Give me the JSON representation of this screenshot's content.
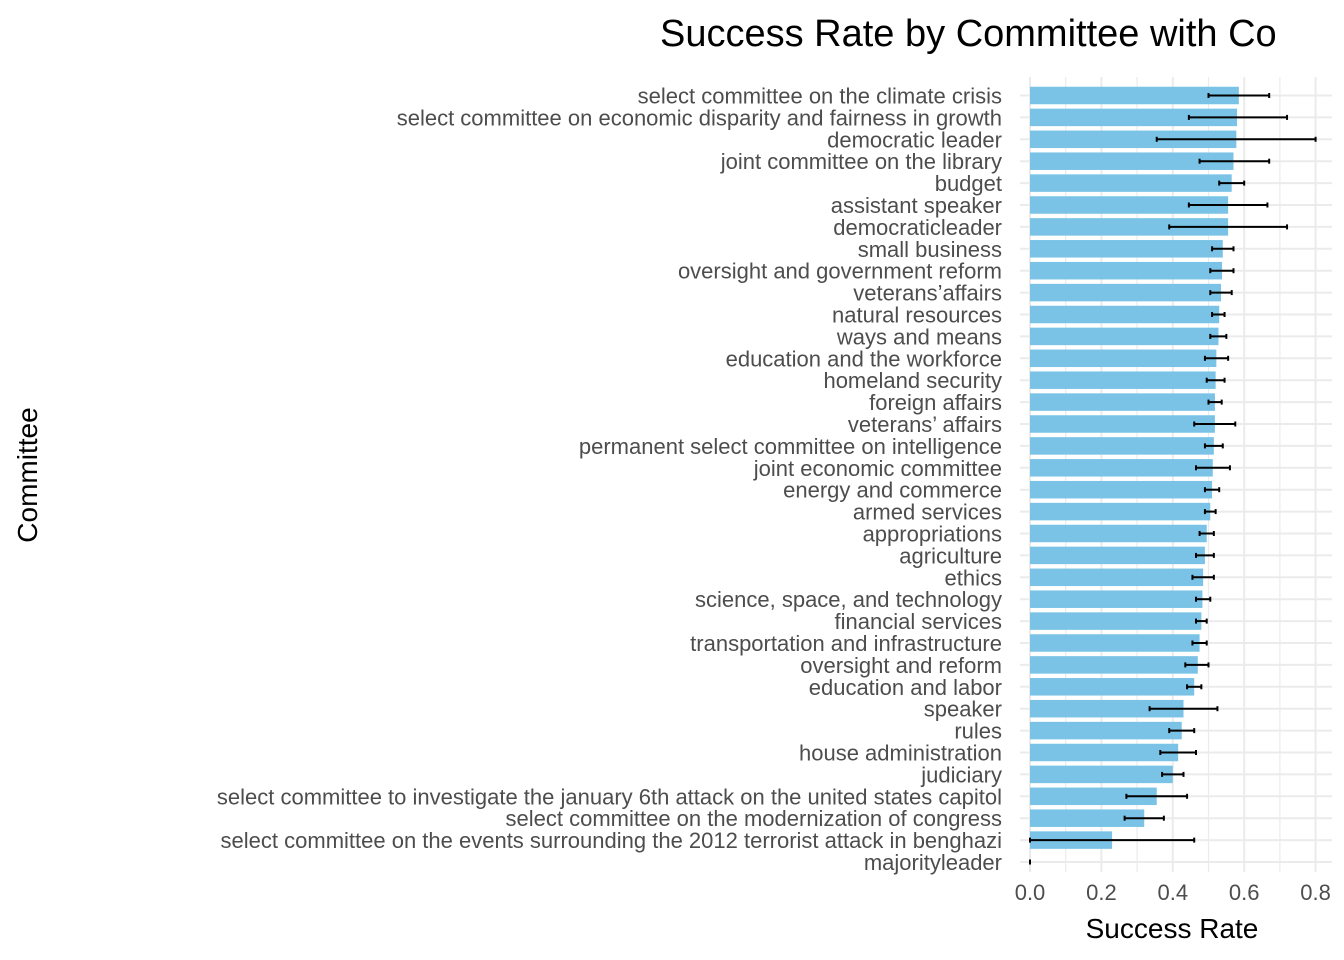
{
  "chart_data": {
    "type": "bar",
    "orientation": "horizontal",
    "title": "Success Rate by Committee with Co",
    "xlabel": "Success Rate",
    "ylabel": "Committee",
    "xlim": [
      0,
      0.82
    ],
    "x_ticks": [
      0.0,
      0.2,
      0.4,
      0.6,
      0.8
    ],
    "x_tick_labels": [
      "0.0",
      "0.2",
      "0.4",
      "0.6",
      "0.8"
    ],
    "grid": true,
    "bar_color": "#7ac3e6",
    "error_bar_color": "#000000",
    "categories": [
      "select committee on the climate crisis",
      "select committee on economic disparity and fairness in growth",
      "democratic leader",
      "joint committee on the library",
      "budget",
      "assistant speaker",
      "democraticleader",
      "small business",
      "oversight and government reform",
      "veterans’affairs",
      "natural resources",
      "ways and means",
      "education and the workforce",
      "homeland security",
      "foreign affairs",
      "veterans’ affairs",
      "permanent select committee on intelligence",
      "joint economic committee",
      "energy and commerce",
      "armed services",
      "appropriations",
      "agriculture",
      "ethics",
      "science, space, and technology",
      "financial services",
      "transportation and infrastructure",
      "oversight and reform",
      "education and labor",
      "speaker",
      "rules",
      "house administration",
      "judiciary",
      "select committee to investigate the january 6th attack on the united states capitol",
      "select committee on the modernization of congress",
      "select committee on the events surrounding the 2012 terrorist attack in benghazi",
      "majorityleader"
    ],
    "series": [
      {
        "values": [
          0.585,
          0.58,
          0.578,
          0.57,
          0.565,
          0.555,
          0.555,
          0.54,
          0.538,
          0.535,
          0.53,
          0.528,
          0.522,
          0.52,
          0.518,
          0.518,
          0.515,
          0.512,
          0.51,
          0.505,
          0.495,
          0.49,
          0.485,
          0.483,
          0.48,
          0.475,
          0.47,
          0.46,
          0.43,
          0.425,
          0.415,
          0.4,
          0.355,
          0.32,
          0.23,
          0.0
        ],
        "ci_low": [
          0.5,
          0.445,
          0.355,
          0.475,
          0.53,
          0.445,
          0.39,
          0.51,
          0.505,
          0.505,
          0.51,
          0.505,
          0.49,
          0.495,
          0.5,
          0.46,
          0.49,
          0.465,
          0.49,
          0.49,
          0.475,
          0.465,
          0.455,
          0.465,
          0.465,
          0.455,
          0.435,
          0.44,
          0.335,
          0.39,
          0.365,
          0.37,
          0.27,
          0.265,
          0.0,
          0.0
        ],
        "ci_high": [
          0.67,
          0.72,
          0.8,
          0.67,
          0.6,
          0.665,
          0.72,
          0.57,
          0.57,
          0.565,
          0.545,
          0.55,
          0.555,
          0.545,
          0.537,
          0.575,
          0.54,
          0.56,
          0.53,
          0.52,
          0.515,
          0.515,
          0.515,
          0.505,
          0.495,
          0.495,
          0.5,
          0.48,
          0.525,
          0.46,
          0.465,
          0.43,
          0.44,
          0.375,
          0.46,
          0.0
        ]
      }
    ]
  }
}
